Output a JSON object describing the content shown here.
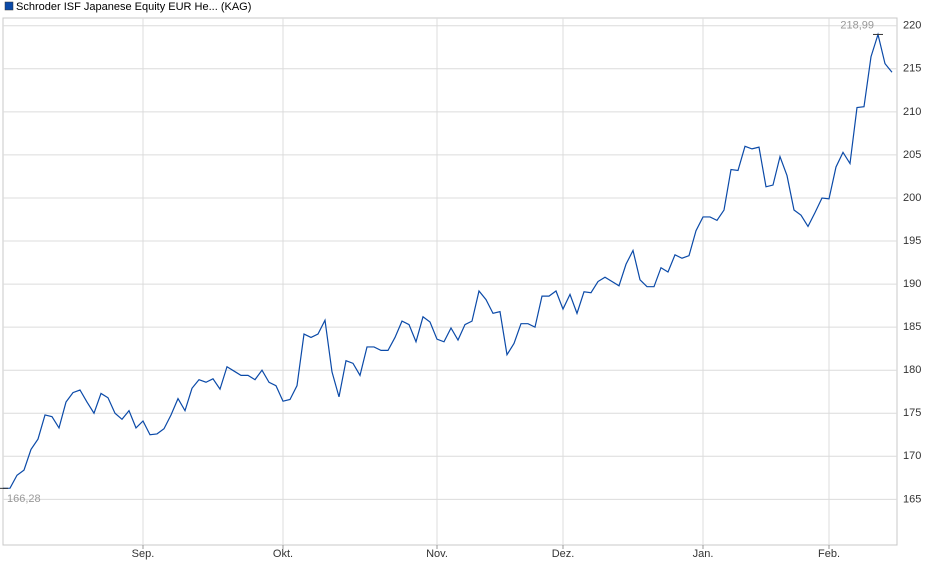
{
  "chart_data": {
    "type": "line",
    "categories": [
      null,
      null,
      null,
      null,
      null,
      null,
      null,
      null,
      null,
      null,
      null,
      null,
      null,
      null,
      null,
      null,
      null,
      null,
      null,
      null,
      "Sep.",
      null,
      null,
      null,
      null,
      null,
      null,
      null,
      null,
      null,
      null,
      null,
      null,
      null,
      null,
      null,
      null,
      null,
      null,
      null,
      "Okt.",
      null,
      null,
      null,
      null,
      null,
      null,
      null,
      null,
      null,
      null,
      null,
      null,
      null,
      null,
      null,
      null,
      null,
      null,
      null,
      null,
      null,
      "Nov.",
      null,
      null,
      null,
      null,
      null,
      null,
      null,
      null,
      null,
      null,
      null,
      null,
      null,
      null,
      null,
      null,
      null,
      "Dez.",
      null,
      null,
      null,
      null,
      null,
      null,
      null,
      null,
      null,
      null,
      null,
      null,
      null,
      null,
      null,
      null,
      null,
      null,
      null,
      "Jan.",
      null,
      null,
      null,
      null,
      null,
      null,
      null,
      null,
      null,
      null,
      null,
      null,
      null,
      null,
      null,
      null,
      null,
      "Feb.",
      null,
      null,
      null,
      null,
      null,
      null,
      null,
      null,
      null
    ],
    "series": [
      {
        "name": "Schroder ISF Japanese Equity EUR He... (KAG)",
        "color": "#0b4aa8",
        "values": [
          166.28,
          166.3,
          167.8,
          168.4,
          170.8,
          172.0,
          174.8,
          174.6,
          173.3,
          176.3,
          177.4,
          177.7,
          176.3,
          175.0,
          177.3,
          176.8,
          175.0,
          174.3,
          175.3,
          173.3,
          174.1,
          172.5,
          172.6,
          173.2,
          174.8,
          176.7,
          175.3,
          177.9,
          178.9,
          178.6,
          179.0,
          177.8,
          180.4,
          179.9,
          179.4,
          179.4,
          178.9,
          180.0,
          178.6,
          178.2,
          176.4,
          176.6,
          178.2,
          184.2,
          183.8,
          184.2,
          185.8,
          179.8,
          176.9,
          181.1,
          180.8,
          179.4,
          182.7,
          182.7,
          182.3,
          182.3,
          183.8,
          185.7,
          185.3,
          183.3,
          186.2,
          185.6,
          183.6,
          183.3,
          184.9,
          183.5,
          185.3,
          185.7,
          189.2,
          188.2,
          186.6,
          186.8,
          181.8,
          183.1,
          185.4,
          185.4,
          185.0,
          188.6,
          188.6,
          189.2,
          187.1,
          188.8,
          186.6,
          189.1,
          189.0,
          190.3,
          190.8,
          190.3,
          189.8,
          192.3,
          193.9,
          190.5,
          189.7,
          189.7,
          191.9,
          191.4,
          193.4,
          193.0,
          193.3,
          196.2,
          197.8,
          197.8,
          197.4,
          198.6,
          203.3,
          203.2,
          206.0,
          205.7,
          205.9,
          201.3,
          201.5,
          204.8,
          202.6,
          198.6,
          198.0,
          196.7,
          198.3,
          200.0,
          199.9,
          203.6,
          205.3,
          204.0,
          210.5,
          210.6,
          216.4,
          218.99,
          215.6,
          214.6
        ],
        "value_labels": [
          "166,28",
          null,
          null,
          null,
          null,
          null,
          null,
          null,
          null,
          null,
          null,
          null,
          null,
          null,
          null,
          null,
          null,
          null,
          null,
          null,
          null,
          null,
          null,
          null,
          null,
          null,
          null,
          null,
          null,
          null,
          null,
          null,
          null,
          null,
          null,
          null,
          null,
          null,
          null,
          null,
          null,
          null,
          null,
          null,
          null,
          null,
          null,
          null,
          null,
          null,
          null,
          null,
          null,
          null,
          null,
          null,
          null,
          null,
          null,
          null,
          null,
          null,
          null,
          null,
          null,
          null,
          null,
          null,
          null,
          null,
          null,
          null,
          null,
          null,
          null,
          null,
          null,
          null,
          null,
          null,
          null,
          null,
          null,
          null,
          null,
          null,
          null,
          null,
          null,
          null,
          null,
          null,
          null,
          null,
          null,
          null,
          null,
          null,
          null,
          null,
          null,
          null,
          null,
          null,
          null,
          null,
          null,
          null,
          null,
          null,
          null,
          null,
          null,
          null,
          null,
          null,
          null,
          null,
          null,
          null,
          null,
          null,
          null,
          null,
          null,
          "218,99",
          null,
          null
        ]
      }
    ],
    "ylim": [
      159.7,
      220.9
    ],
    "yticks": [
      165,
      170,
      175,
      180,
      185,
      190,
      195,
      200,
      205,
      210,
      215,
      220
    ],
    "grid": true
  }
}
